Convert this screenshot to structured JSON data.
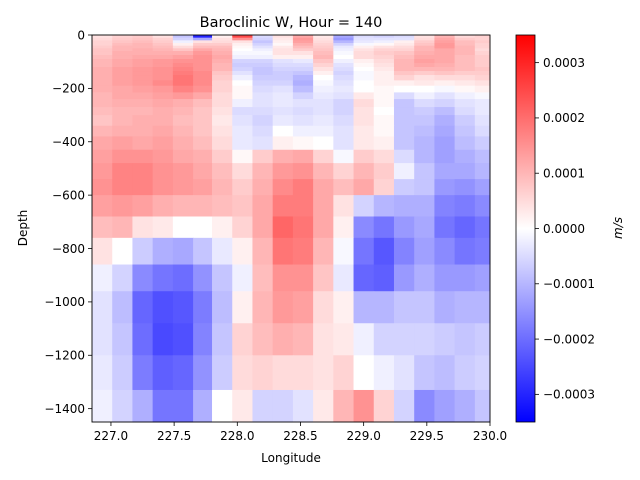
{
  "chart_data": {
    "type": "heatmap",
    "title": "Baroclinic W, Hour = 140",
    "xlabel": "Longitude",
    "ylabel": "Depth",
    "colorbar_label": "m/s",
    "xlim": [
      226.85,
      230.0
    ],
    "ylim": [
      -1450,
      0
    ],
    "x_ticks": [
      227.0,
      227.5,
      228.0,
      228.5,
      229.0,
      229.5,
      230.0
    ],
    "x_tick_labels": [
      "227.0",
      "227.5",
      "228.0",
      "228.5",
      "229.0",
      "229.5",
      "230.0"
    ],
    "y_ticks": [
      0,
      -200,
      -400,
      -600,
      -800,
      -1000,
      -1200,
      -1400
    ],
    "y_tick_labels": [
      "0",
      "−200",
      "−400",
      "−600",
      "−800",
      "−1000",
      "−1200",
      "−1400"
    ],
    "colorbar_range": [
      -0.00035,
      0.00035
    ],
    "colorbar_ticks": [
      0.0003,
      0.0002,
      0.0001,
      0.0,
      -0.0001,
      -0.0002,
      -0.0003
    ],
    "colorbar_tick_labels": [
      "0.0003",
      "0.0002",
      "0.0001",
      "0.0000",
      "−0.0001",
      "−0.0002",
      "−0.0003"
    ],
    "colormap": "bwr",
    "x_edges": [
      226.85,
      227.01,
      227.17,
      227.33,
      227.49,
      227.65,
      227.8,
      227.96,
      228.12,
      228.28,
      228.44,
      228.6,
      228.76,
      228.92,
      229.08,
      229.24,
      229.4,
      229.56,
      229.72,
      229.88,
      230.0
    ],
    "depth_edges": [
      0,
      -10,
      -20,
      -30,
      -40,
      -50,
      -60,
      -75,
      -90,
      -105,
      -120,
      -135,
      -150,
      -170,
      -190,
      -215,
      -240,
      -270,
      -300,
      -340,
      -380,
      -430,
      -480,
      -540,
      -600,
      -680,
      -760,
      -860,
      -960,
      -1080,
      -1200,
      -1330,
      -1450
    ],
    "values": [
      [
        4e-05,
        6e-05,
        7e-05,
        4e-05,
        -8e-05,
        -0.0003,
        2e-05,
        0.00025,
        -5e-05,
        4e-05,
        0.00012,
        3e-05,
        -0.00012,
        -5e-05,
        -6e-05,
        -5e-05,
        4e-05,
        0.0001,
        5e-05,
        6e-05
      ],
      [
        5e-05,
        7e-05,
        8e-05,
        6e-05,
        -6e-05,
        -0.00012,
        4e-05,
        0.00015,
        -6e-05,
        3e-05,
        0.00014,
        4e-05,
        -0.00014,
        -4e-05,
        -4e-05,
        -4e-05,
        5e-05,
        0.00012,
        7e-05,
        6e-05
      ],
      [
        6e-05,
        8e-05,
        9e-05,
        7e-05,
        -2e-05,
        4e-05,
        5e-05,
        4e-05,
        -8e-05,
        2e-05,
        0.00013,
        5e-05,
        -0.0001,
        -3e-05,
        -2e-05,
        2e-05,
        7e-05,
        0.00013,
        9e-05,
        7e-05
      ],
      [
        6e-05,
        9e-05,
        0.0001,
        8e-05,
        2e-05,
        7e-05,
        7e-05,
        2e-05,
        -6e-05,
        1e-05,
        0.00011,
        6e-05,
        -6e-05,
        -1e-05,
        1e-05,
        3e-05,
        8e-05,
        0.00014,
        9e-05,
        6e-05
      ],
      [
        7e-05,
        0.0001,
        0.0001,
        9e-05,
        5e-05,
        9e-05,
        9e-05,
        1e-05,
        -4e-05,
        3e-05,
        9e-05,
        7e-05,
        -3e-05,
        2e-05,
        4e-05,
        5e-05,
        0.0001,
        0.00014,
        0.0001,
        6e-05
      ],
      [
        8e-05,
        0.0001,
        0.00011,
        0.0001,
        8e-05,
        0.00012,
        0.0001,
        0.0,
        -2e-05,
        4e-05,
        7e-05,
        8e-05,
        -2e-05,
        4e-05,
        6e-05,
        6e-05,
        0.0001,
        0.00012,
        0.0001,
        5e-05
      ],
      [
        8e-05,
        0.00011,
        0.00011,
        0.00011,
        0.00011,
        0.00014,
        0.00011,
        -1e-05,
        -1e-05,
        4e-05,
        4e-05,
        9e-05,
        -1e-05,
        5e-05,
        7e-05,
        8e-05,
        0.00011,
        0.00012,
        0.0001,
        6e-05
      ],
      [
        9e-05,
        0.00011,
        0.00012,
        0.00012,
        0.00013,
        0.00015,
        0.00012,
        -2e-05,
        -2e-05,
        2e-05,
        2e-05,
        0.0001,
        0.0,
        5e-05,
        6e-05,
        9e-05,
        0.00012,
        0.00012,
        9e-05,
        7e-05
      ],
      [
        0.0001,
        0.00012,
        0.00013,
        0.00014,
        0.00015,
        0.00015,
        0.00011,
        -6e-05,
        -6e-05,
        -4e-05,
        -3e-05,
        8e-05,
        -2e-05,
        2e-05,
        5e-05,
        0.0001,
        0.00013,
        0.00012,
        9e-05,
        7e-05
      ],
      [
        0.0001,
        0.00012,
        0.00013,
        0.00014,
        0.00016,
        0.00015,
        0.0001,
        -7e-05,
        -7e-05,
        -5e-05,
        -5e-05,
        6e-05,
        -4e-05,
        1e-05,
        4e-05,
        0.0001,
        0.00012,
        0.00011,
        9e-05,
        7e-05
      ],
      [
        0.00011,
        0.00013,
        0.00014,
        0.00015,
        0.00017,
        0.00015,
        0.0001,
        -6e-05,
        -8e-05,
        -6e-05,
        -6e-05,
        4e-05,
        -5e-05,
        0.0,
        3e-05,
        0.0001,
        0.0001,
        0.0001,
        9e-05,
        8e-05
      ],
      [
        0.00011,
        0.00013,
        0.00014,
        0.00015,
        0.00018,
        0.00016,
        8e-05,
        -4e-05,
        -8e-05,
        -7e-05,
        -8e-05,
        2e-05,
        -6e-05,
        -1e-05,
        2e-05,
        8e-05,
        7e-05,
        8e-05,
        7e-05,
        7e-05
      ],
      [
        0.00011,
        0.00013,
        0.00014,
        0.00015,
        0.00019,
        0.00016,
        7e-05,
        -2e-05,
        -7e-05,
        -7e-05,
        -0.0001,
        0.0,
        -5e-05,
        -1e-05,
        2e-05,
        6e-05,
        4e-05,
        5e-05,
        5e-05,
        6e-05
      ],
      [
        0.00011,
        0.00013,
        0.00014,
        0.00016,
        0.00019,
        0.00016,
        6e-05,
        0.0,
        -6e-05,
        -6e-05,
        -0.00011,
        -1e-05,
        -4e-05,
        0.0,
        2e-05,
        2e-05,
        3e-05,
        2e-05,
        3e-05,
        4e-05
      ],
      [
        0.00011,
        0.00012,
        0.00013,
        0.00014,
        0.00017,
        0.00015,
        6e-05,
        1e-05,
        -5e-05,
        -4e-05,
        -9e-05,
        -2e-05,
        -3e-05,
        0.0,
        1e-05,
        0.0,
        0.0,
        -1e-05,
        1e-05,
        2e-05
      ],
      [
        0.0001,
        0.00012,
        0.00012,
        0.00013,
        0.00014,
        0.00012,
        5e-05,
        1e-05,
        -4e-05,
        -3e-05,
        -6e-05,
        -3e-05,
        -4e-05,
        3e-05,
        1e-05,
        -5e-05,
        -2e-05,
        -4e-05,
        -2e-05,
        -1e-05
      ],
      [
        0.0001,
        0.00011,
        0.00011,
        0.00012,
        0.00011,
        9e-05,
        5e-05,
        -2e-05,
        -4e-05,
        -3e-05,
        -4e-05,
        -4e-05,
        -6e-05,
        5e-05,
        1e-05,
        -8e-05,
        -5e-05,
        -6e-05,
        -4e-05,
        -3e-05
      ],
      [
        9e-05,
        0.0001,
        0.0001,
        0.00011,
        0.0001,
        8e-05,
        4e-05,
        -5e-05,
        -5e-05,
        -4e-05,
        -5e-05,
        -4e-05,
        -6e-05,
        4e-05,
        0.0,
        -8e-05,
        -7e-05,
        -9e-05,
        -5e-05,
        -3e-05
      ],
      [
        8e-05,
        0.0001,
        0.00011,
        0.00011,
        9e-05,
        8e-05,
        3e-05,
        -4e-05,
        -6e-05,
        -3e-05,
        -4e-05,
        -3e-05,
        -5e-05,
        4e-05,
        1e-05,
        -8e-05,
        -8e-05,
        -0.00011,
        -7e-05,
        -4e-05
      ],
      [
        0.0001,
        0.00011,
        0.00011,
        0.00012,
        0.0001,
        8e-05,
        4e-05,
        -3e-05,
        -5e-05,
        0.0,
        -2e-05,
        -2e-05,
        -4e-05,
        3e-05,
        1e-05,
        -8e-05,
        -9e-05,
        -0.00012,
        -8e-05,
        -5e-05
      ],
      [
        0.00012,
        0.00013,
        0.00012,
        0.00013,
        0.00011,
        9e-05,
        5e-05,
        -3e-05,
        -4e-05,
        2e-05,
        1e-05,
        0.0,
        -4e-05,
        3e-05,
        2e-05,
        -8e-05,
        -0.0001,
        -0.00013,
        -9e-05,
        -7e-05
      ],
      [
        0.00013,
        0.00015,
        0.00015,
        0.00014,
        0.00012,
        0.00011,
        7e-05,
        1e-05,
        7e-05,
        0.00011,
        0.00012,
        6e-05,
        -1e-05,
        7e-05,
        5e-05,
        -5e-05,
        -0.0001,
        -0.00013,
        -0.00011,
        -9e-05
      ],
      [
        0.00014,
        0.00017,
        0.00017,
        0.00015,
        0.00014,
        0.00012,
        9e-05,
        5e-05,
        0.0001,
        0.00014,
        0.00015,
        0.0001,
        6e-05,
        0.0001,
        7e-05,
        -2e-05,
        -8e-05,
        -0.00012,
        -0.00012,
        -0.0001
      ],
      [
        0.00015,
        0.00017,
        0.00017,
        0.00015,
        0.00014,
        0.00013,
        0.0001,
        7e-05,
        0.00011,
        0.00016,
        0.00018,
        0.00012,
        9e-05,
        0.00012,
        6e-05,
        -7e-05,
        -8e-05,
        -0.00014,
        -0.00015,
        -0.00013
      ],
      [
        0.00013,
        0.00014,
        0.00013,
        0.00011,
        0.0001,
        0.0001,
        9e-05,
        8e-05,
        0.00012,
        0.00018,
        0.00018,
        0.00012,
        4e-05,
        -6e-05,
        -0.0001,
        -0.00011,
        -0.00011,
        -0.00017,
        -0.00018,
        -0.00016
      ],
      [
        9e-05,
        0.0001,
        4e-05,
        3e-05,
        0.0,
        0.0,
        2e-05,
        6e-05,
        0.00012,
        0.00021,
        0.00019,
        0.00012,
        2e-05,
        -0.00016,
        -0.00019,
        -0.00014,
        -0.00012,
        -0.00019,
        -0.00021,
        -0.00019
      ],
      [
        4e-05,
        0.0,
        -7e-05,
        -0.00011,
        -0.00012,
        -8e-05,
        -3e-05,
        2e-05,
        0.0001,
        0.00019,
        0.00018,
        0.0001,
        -1e-05,
        -0.00019,
        -0.00023,
        -0.00017,
        -0.00013,
        -0.00016,
        -0.00019,
        -0.00018
      ],
      [
        -2e-05,
        -6e-05,
        -0.00016,
        -0.00019,
        -0.0002,
        -0.00015,
        -8e-05,
        -2e-05,
        9e-05,
        0.00015,
        0.00015,
        8e-05,
        -3e-05,
        -0.00021,
        -0.00022,
        -0.00014,
        -0.00011,
        -0.00014,
        -0.00014,
        -0.00013
      ],
      [
        -4e-05,
        -9e-05,
        -0.00021,
        -0.00024,
        -0.00023,
        -0.00018,
        -9e-05,
        2e-05,
        0.0001,
        0.00014,
        0.00013,
        5e-05,
        2e-05,
        -0.0001,
        -0.0001,
        -8e-05,
        -8e-05,
        -0.00011,
        -0.0001,
        -0.0001
      ],
      [
        -4e-05,
        -8e-05,
        -0.0002,
        -0.00025,
        -0.00024,
        -0.00017,
        -8e-05,
        6e-05,
        9e-05,
        0.00011,
        0.0001,
        4e-05,
        3e-05,
        -2e-05,
        -6e-05,
        -6e-05,
        -6e-05,
        -7e-05,
        -8e-05,
        -7e-05
      ],
      [
        -3e-05,
        -7e-05,
        -0.00018,
        -0.00022,
        -0.00021,
        -0.00015,
        -7e-05,
        5e-05,
        6e-05,
        5e-05,
        5e-05,
        4e-05,
        6e-05,
        0.0,
        -2e-05,
        -4e-05,
        -8e-05,
        -9e-05,
        -7e-05,
        -6e-05
      ],
      [
        -2e-05,
        -6e-05,
        -0.00011,
        -0.00019,
        -0.00019,
        -0.00011,
        0.0,
        3e-05,
        -6e-05,
        -6e-05,
        -4e-05,
        3e-05,
        0.0001,
        0.00015,
        6e-05,
        -6e-05,
        -0.00016,
        -0.00013,
        -0.00011,
        -8e-05
      ]
    ]
  }
}
